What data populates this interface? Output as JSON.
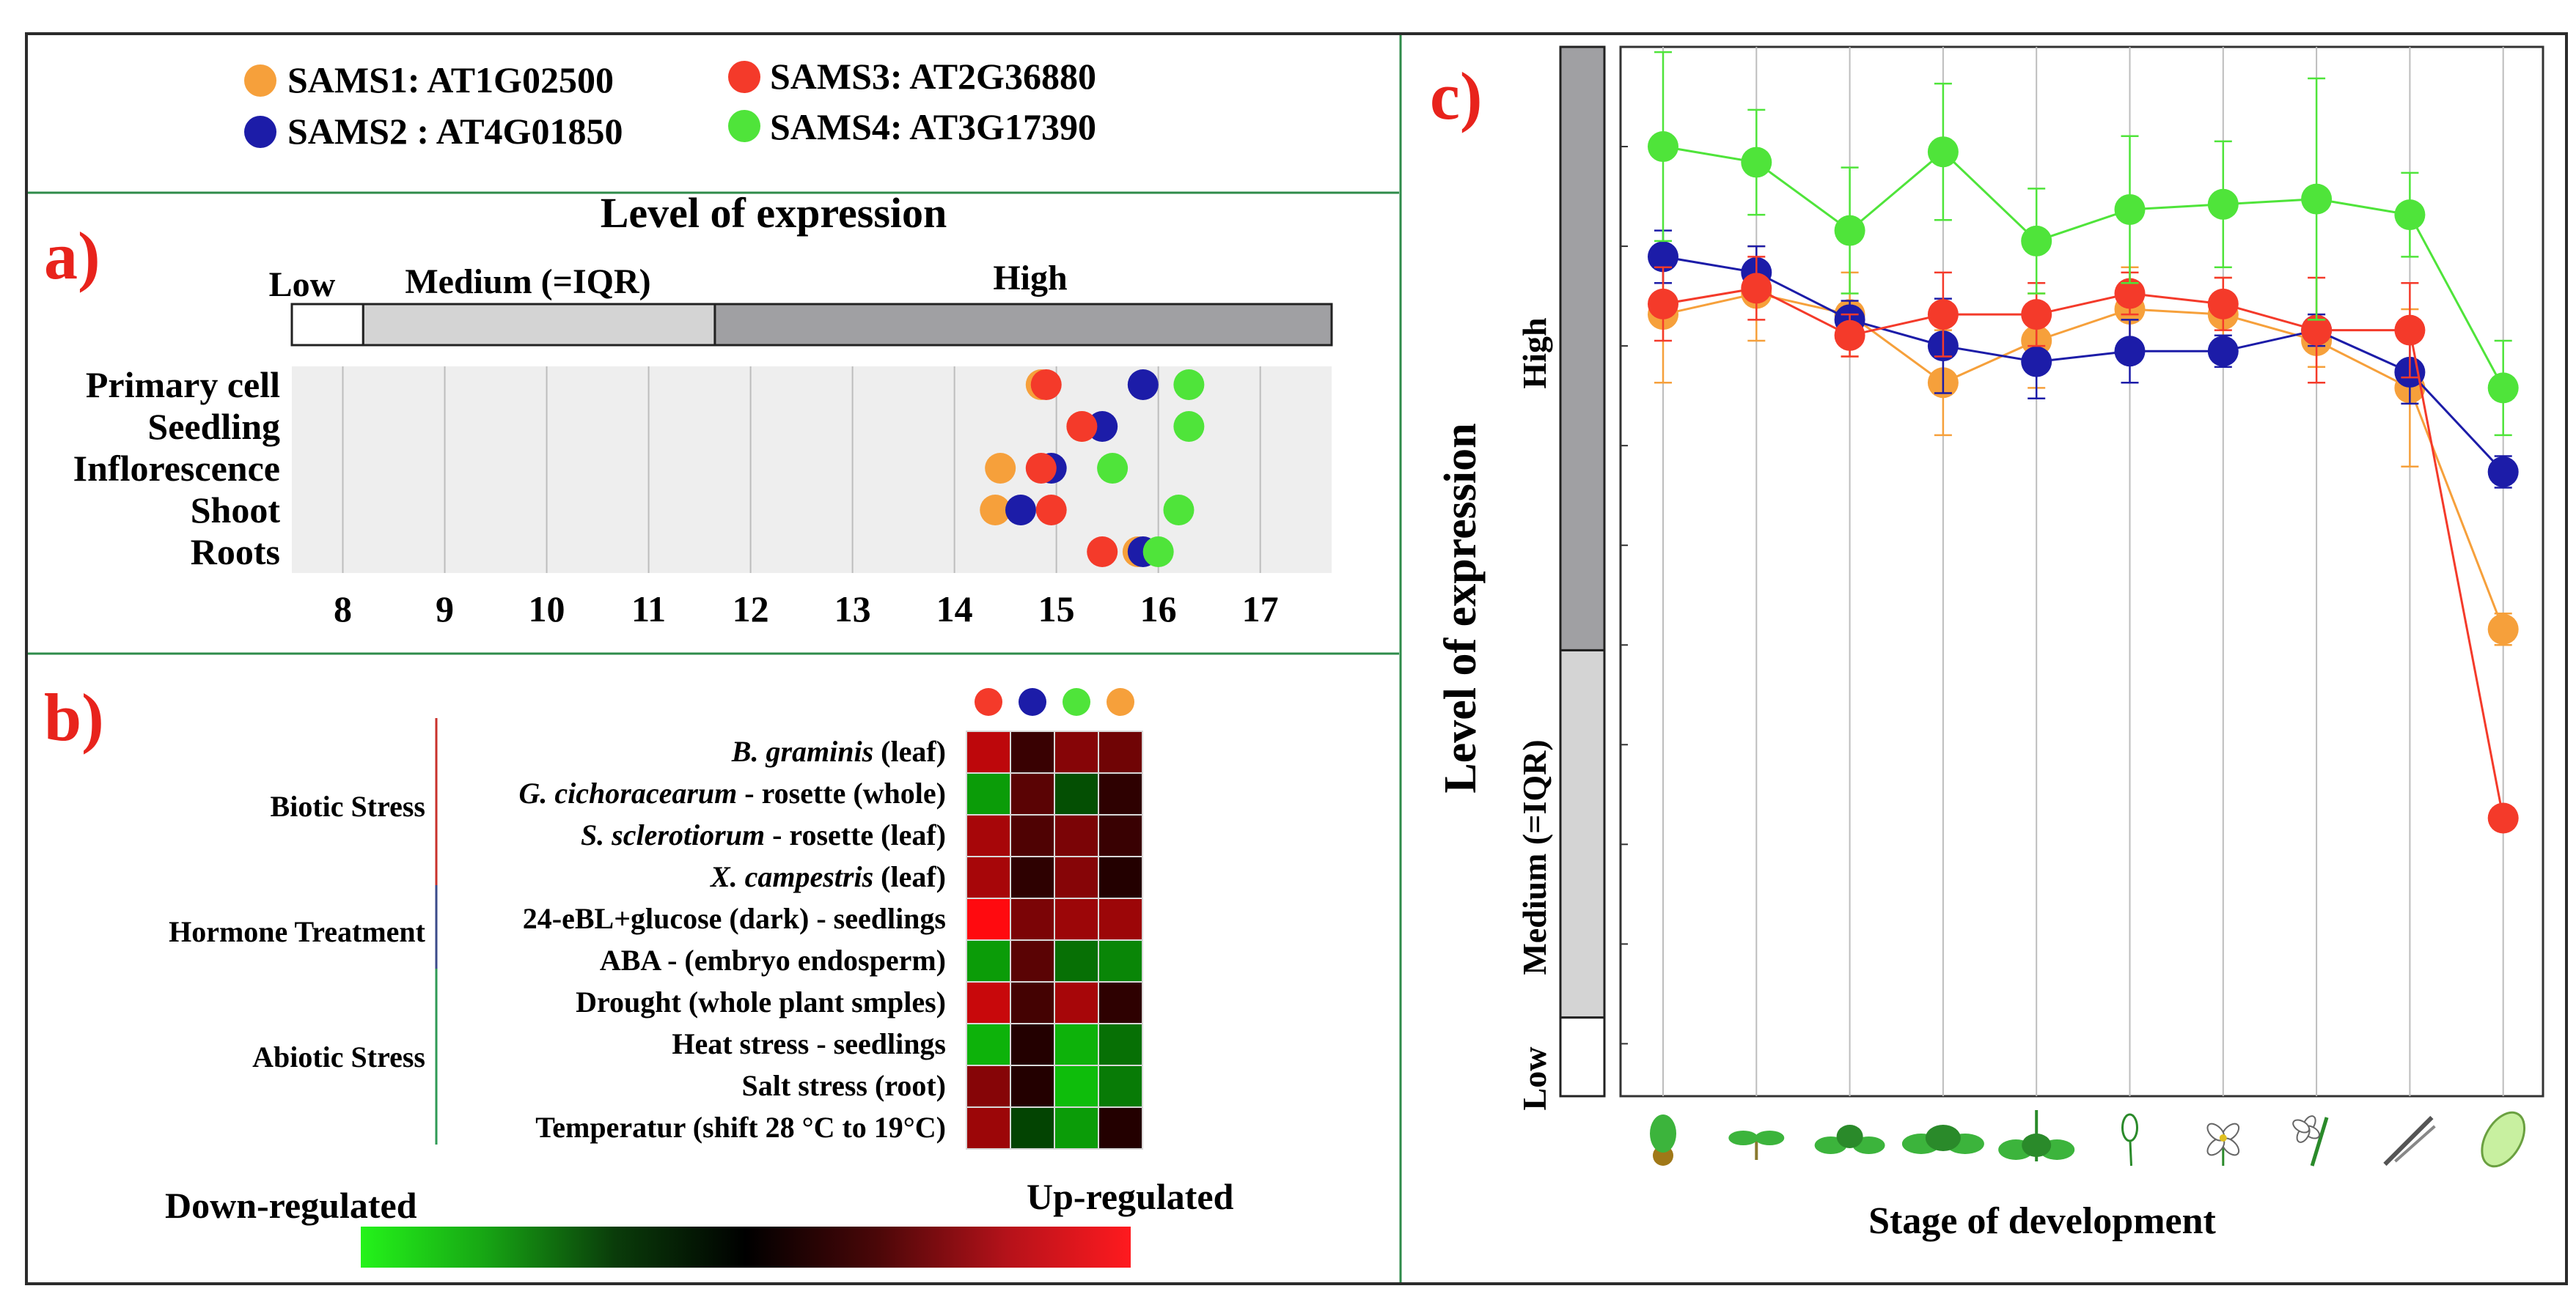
{
  "colors": {
    "sams1": "#f6a03b",
    "sams2": "#1c1ca8",
    "sams3": "#f43a2a",
    "sams4": "#4fe43a",
    "panel_line": "#2e8b4a",
    "label_red": "#e8231c",
    "high_bar": "#a0a0a3",
    "medium_bar": "#d4d4d4"
  },
  "legend": [
    {
      "key": "sams1",
      "label": "SAMS1: AT1G02500"
    },
    {
      "key": "sams2",
      "label": "SAMS2 : AT4G01850"
    },
    {
      "key": "sams3",
      "label": "SAMS3: AT2G36880"
    },
    {
      "key": "sams4",
      "label": "SAMS4: AT3G17390"
    }
  ],
  "panel_labels": {
    "a": "a)",
    "b": "b)",
    "c": "c)"
  },
  "panel_a": {
    "title": "Level of expression",
    "bar_labels": {
      "low": "Low",
      "medium": "Medium (=IQR)",
      "high": "High"
    }
  },
  "panel_b": {
    "groups": [
      {
        "name": "Biotic Stress",
        "color": "#c9312b"
      },
      {
        "name": "Hormone Treatment",
        "color": "#3a4a8a"
      },
      {
        "name": "Abiotic Stress",
        "color": "#2f9a55"
      }
    ],
    "rows": [
      {
        "italic": "B. graminis",
        "rest": " (leaf)"
      },
      {
        "italic": "G. cichoracearum",
        "rest": " - rosette (whole)"
      },
      {
        "italic": "S. sclerotiorum",
        "rest": " - rosette (leaf)"
      },
      {
        "italic": "X. campestris",
        "rest": " (leaf)"
      },
      {
        "italic": "",
        "rest": "24-eBL+glucose (dark) - seedlings"
      },
      {
        "italic": "",
        "rest": "ABA - (embryo endosperm)"
      },
      {
        "italic": "",
        "rest": "Drought (whole plant smples)"
      },
      {
        "italic": "",
        "rest": "Heat stress - seedlings"
      },
      {
        "italic": "",
        "rest": "Salt stress (root)"
      },
      {
        "italic": "",
        "rest": "Temperatur (shift 28 °C to 19°C)"
      }
    ],
    "scale": {
      "down": "Down-regulated",
      "up": "Up-regulated"
    }
  },
  "panel_c": {
    "xlabel": "Stage of development",
    "ylabel": "Level of expression",
    "bar_labels": {
      "high": "High",
      "medium": "Medium (=IQR)",
      "low": "Low"
    }
  },
  "chart_data": [
    {
      "type": "scatter",
      "title": "Level of expression",
      "xlabel": "",
      "ylabel": "",
      "xlim": [
        7.5,
        17.7
      ],
      "xticks": [
        8,
        9,
        10,
        11,
        12,
        13,
        14,
        15,
        16,
        17
      ],
      "categories": [
        "Primary cell",
        "Seedling",
        "Inflorescence",
        "Shoot",
        "Roots"
      ],
      "expression_bands": {
        "low": [
          7.5,
          8.2
        ],
        "medium": [
          8.2,
          11.65
        ],
        "high": [
          11.65,
          17.7
        ]
      },
      "series": [
        {
          "name": "SAMS1: AT1G02500",
          "key": "sams1",
          "values": [
            14.85,
            15.25,
            14.45,
            14.4,
            15.8
          ]
        },
        {
          "name": "SAMS2 : AT4G01850",
          "key": "sams2",
          "values": [
            15.85,
            15.45,
            14.95,
            14.65,
            15.85
          ]
        },
        {
          "name": "SAMS3: AT2G36880",
          "key": "sams3",
          "values": [
            14.9,
            15.25,
            14.85,
            14.95,
            15.45
          ]
        },
        {
          "name": "SAMS4: AT3G17390",
          "key": "sams4",
          "values": [
            16.3,
            16.3,
            15.55,
            16.2,
            16.0
          ]
        }
      ]
    },
    {
      "type": "heatmap",
      "columns": [
        "sams3",
        "sams2",
        "sams4",
        "sams1"
      ],
      "rows": [
        "B. graminis (leaf)",
        "G. cichoracearum - rosette (whole)",
        "S. sclerotiorum - rosette (leaf)",
        "X. campestris (leaf)",
        "24-eBL+glucose (dark) - seedlings",
        "ABA - (embryo endosperm)",
        "Drought (whole plant smples)",
        "Heat stress - seedlings",
        "Salt stress (root)",
        "Temperatur (shift 28 °C to 19°C)"
      ],
      "values": [
        [
          0.7,
          0.1,
          0.45,
          0.35
        ],
        [
          -0.55,
          0.25,
          -0.2,
          0.05
        ],
        [
          0.6,
          0.2,
          0.4,
          0.1
        ],
        [
          0.6,
          0.05,
          0.45,
          0.0
        ],
        [
          1.0,
          0.4,
          0.55,
          0.55
        ],
        [
          -0.55,
          0.25,
          -0.35,
          -0.45
        ],
        [
          0.75,
          0.15,
          0.6,
          0.05
        ],
        [
          -0.65,
          0.0,
          -0.65,
          -0.35
        ],
        [
          0.45,
          0.0,
          -0.7,
          -0.4
        ],
        [
          0.55,
          -0.15,
          -0.55,
          0.0
        ]
      ],
      "scale_range": [
        -1,
        1
      ]
    },
    {
      "type": "line",
      "xlabel": "Stage of development",
      "ylabel": "Level of expression",
      "ylim": [
        0,
        100
      ],
      "x": [
        1,
        2,
        3,
        4,
        5,
        6,
        7,
        8,
        9,
        10
      ],
      "stage_icons": [
        "germinated-seed",
        "seedling",
        "rosette-young",
        "rosette",
        "bolting-plant",
        "flower-bud",
        "open-flower",
        "flower-with-silique",
        "mature-silique",
        "seed"
      ],
      "expression_bands": {
        "low": [
          0,
          7.5
        ],
        "medium": [
          7.5,
          42.5
        ],
        "high": [
          42.5,
          100
        ]
      },
      "series": [
        {
          "name": "SAMS1: AT1G02500",
          "key": "sams1",
          "values": [
            74.5,
            76.5,
            74.5,
            68.0,
            72.0,
            75.0,
            74.5,
            72.0,
            67.5,
            44.5
          ],
          "err": [
            6.5,
            4.5,
            4.0,
            5.0,
            4.5,
            4.0,
            3.5,
            2.5,
            7.5,
            1.5
          ]
        },
        {
          "name": "SAMS2 : AT4G01850",
          "key": "sams2",
          "values": [
            80.0,
            78.5,
            74.0,
            71.5,
            70.0,
            71.0,
            71.0,
            73.0,
            69.0,
            59.5
          ],
          "err": [
            2.5,
            2.5,
            1.8,
            4.5,
            3.5,
            3.0,
            1.5,
            1.5,
            3.0,
            1.5
          ]
        },
        {
          "name": "SAMS3: AT2G36880",
          "key": "sams3",
          "values": [
            75.5,
            77.0,
            72.5,
            74.5,
            74.5,
            76.5,
            75.5,
            73.0,
            73.0,
            26.5
          ],
          "err": [
            3.5,
            3.0,
            2.0,
            4.0,
            3.0,
            2.0,
            2.5,
            5.0,
            4.5,
            0.8
          ]
        },
        {
          "name": "SAMS4: AT3G17390",
          "key": "sams4",
          "values": [
            90.5,
            89.0,
            82.5,
            90.0,
            81.5,
            84.5,
            85.0,
            85.5,
            84.0,
            67.5
          ],
          "err": [
            9.0,
            5.0,
            6.0,
            6.5,
            5.0,
            7.0,
            6.0,
            11.5,
            4.0,
            4.5
          ]
        }
      ]
    }
  ]
}
